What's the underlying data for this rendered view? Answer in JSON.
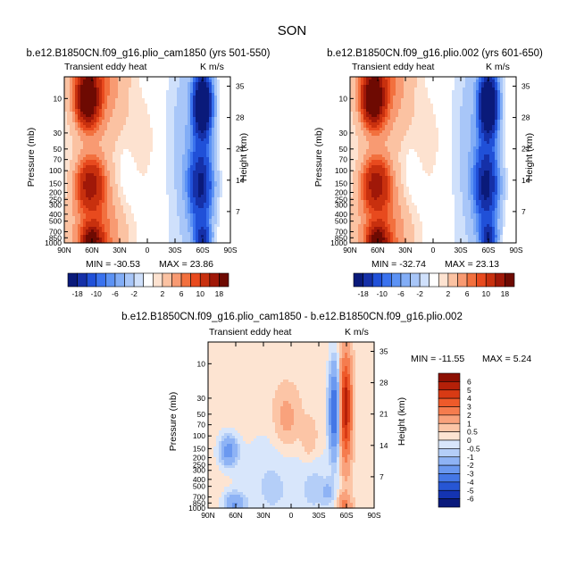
{
  "figure": {
    "title": "SON"
  },
  "chart_data": [
    {
      "type": "heatmap",
      "panel": "left",
      "title": "b.e12.B1850CN.f09_g16.plio_cam1850 (yrs 501-550)",
      "field_label": "Transient eddy heat",
      "units_label": "K m/s",
      "xlabel": "",
      "ylabel": "Pressure (mb)",
      "y2label": "Height (km)",
      "x_ticks": [
        "90N",
        "60N",
        "30N",
        "0",
        "30S",
        "60S",
        "90S"
      ],
      "y_ticks": [
        "10",
        "30",
        "50",
        "70",
        "100",
        "150",
        "200",
        "250",
        "300",
        "400",
        "500",
        "700",
        "850",
        "1000"
      ],
      "y2_ticks": [
        "35",
        "28",
        "21",
        "14",
        "7"
      ],
      "min_label": "MIN = -30.53",
      "max_label": "MAX =  23.86",
      "min": -30.53,
      "max": 23.86,
      "features": [
        {
          "lat": 63,
          "p_top": 5,
          "p_bottom": 1000,
          "peak": 23.86,
          "sign": "positive"
        },
        {
          "lat": -60,
          "p_top": 5,
          "p_bottom": 1000,
          "peak": -30.53,
          "sign": "negative"
        }
      ]
    },
    {
      "type": "heatmap",
      "panel": "right",
      "title": "b.e12.B1850CN.f09_g16.plio.002 (yrs 601-650)",
      "field_label": "Transient eddy heat",
      "units_label": "K m/s",
      "xlabel": "",
      "ylabel": "Pressure (mb)",
      "y2label": "Height (km)",
      "x_ticks": [
        "90N",
        "60N",
        "30N",
        "0",
        "30S",
        "60S",
        "90S"
      ],
      "y_ticks": [
        "10",
        "30",
        "50",
        "70",
        "100",
        "150",
        "200",
        "250",
        "300",
        "400",
        "500",
        "700",
        "850",
        "1000"
      ],
      "y2_ticks": [
        "35",
        "28",
        "21",
        "14",
        "7"
      ],
      "min_label": "MIN = -32.74",
      "max_label": "MAX =  23.13",
      "min": -32.74,
      "max": 23.13,
      "features": [
        {
          "lat": 63,
          "p_top": 5,
          "p_bottom": 1000,
          "peak": 23.13,
          "sign": "positive"
        },
        {
          "lat": -60,
          "p_top": 5,
          "p_bottom": 1000,
          "peak": -32.74,
          "sign": "negative"
        }
      ]
    },
    {
      "type": "heatmap",
      "panel": "difference",
      "title": "b.e12.B1850CN.f09_g16.plio_cam1850 - b.e12.B1850CN.f09_g16.plio.002",
      "field_label": "Transient eddy heat",
      "units_label": "K m/s",
      "xlabel": "",
      "ylabel": "Pressure (mb)",
      "y2label": "Height (km)",
      "x_ticks": [
        "90N",
        "60N",
        "30N",
        "0",
        "30S",
        "60S",
        "90S"
      ],
      "y_ticks": [
        "10",
        "30",
        "50",
        "70",
        "100",
        "150",
        "200",
        "250",
        "300",
        "400",
        "500",
        "700",
        "850",
        "1000"
      ],
      "y2_ticks": [
        "35",
        "28",
        "21",
        "14",
        "7"
      ],
      "min_label": "MIN = -11.55",
      "max_label": "MAX =   5.24",
      "min": -11.55,
      "max": 5.24,
      "features": [
        {
          "lat": -58,
          "p_top": 5,
          "p_bottom": 400,
          "peak": 5.24,
          "sign": "positive"
        },
        {
          "lat": -45,
          "p_top": 5,
          "p_bottom": 250,
          "peak": -4.5,
          "sign": "negative"
        },
        {
          "lat": 65,
          "p_top": 100,
          "p_bottom": 250,
          "peak": -2.5,
          "sign": "negative"
        },
        {
          "lat": 62,
          "p_top": 850,
          "p_bottom": 1000,
          "peak": -11.55,
          "sign": "negative"
        }
      ]
    }
  ],
  "colorbars": {
    "full": {
      "orientation": "horizontal",
      "levels": [
        -18,
        -14,
        -10,
        -8,
        -6,
        -4,
        -2,
        -1,
        1,
        2,
        4,
        6,
        8,
        10,
        14,
        18
      ],
      "labels": [
        "-18",
        "-10",
        "-6",
        "-2",
        "2",
        "6",
        "10",
        "18"
      ],
      "colors": [
        "#0a1a7a",
        "#1530a8",
        "#2050d8",
        "#3a72ee",
        "#5c92f4",
        "#82adf6",
        "#a8c6f8",
        "#cfe0fb",
        "#ffffff",
        "#fde2d0",
        "#fbc2a2",
        "#f89a72",
        "#f2703e",
        "#e84a1e",
        "#c8300e",
        "#a01808",
        "#6e0a02"
      ]
    },
    "diff": {
      "orientation": "vertical",
      "levels": [
        -6,
        -5,
        -4,
        -3,
        -2,
        -1,
        -0.5,
        0,
        0.5,
        1,
        2,
        3,
        4,
        5,
        6
      ],
      "labels": [
        "6",
        "5",
        "4",
        "3",
        "2",
        "1",
        "0.5",
        "0",
        "-0.5",
        "-1",
        "-2",
        "-3",
        "-4",
        "-5",
        "-6"
      ],
      "colors_top_to_bottom": [
        "#8c0f02",
        "#b52008",
        "#d83a14",
        "#ee5a2a",
        "#f57c4e",
        "#f9a27c",
        "#fcc5a6",
        "#fde4d2",
        "#d8e6fb",
        "#b4cef8",
        "#8eb3f5",
        "#6a98f0",
        "#4477e6",
        "#2756d4",
        "#1434b2",
        "#0a1a7c"
      ]
    }
  }
}
